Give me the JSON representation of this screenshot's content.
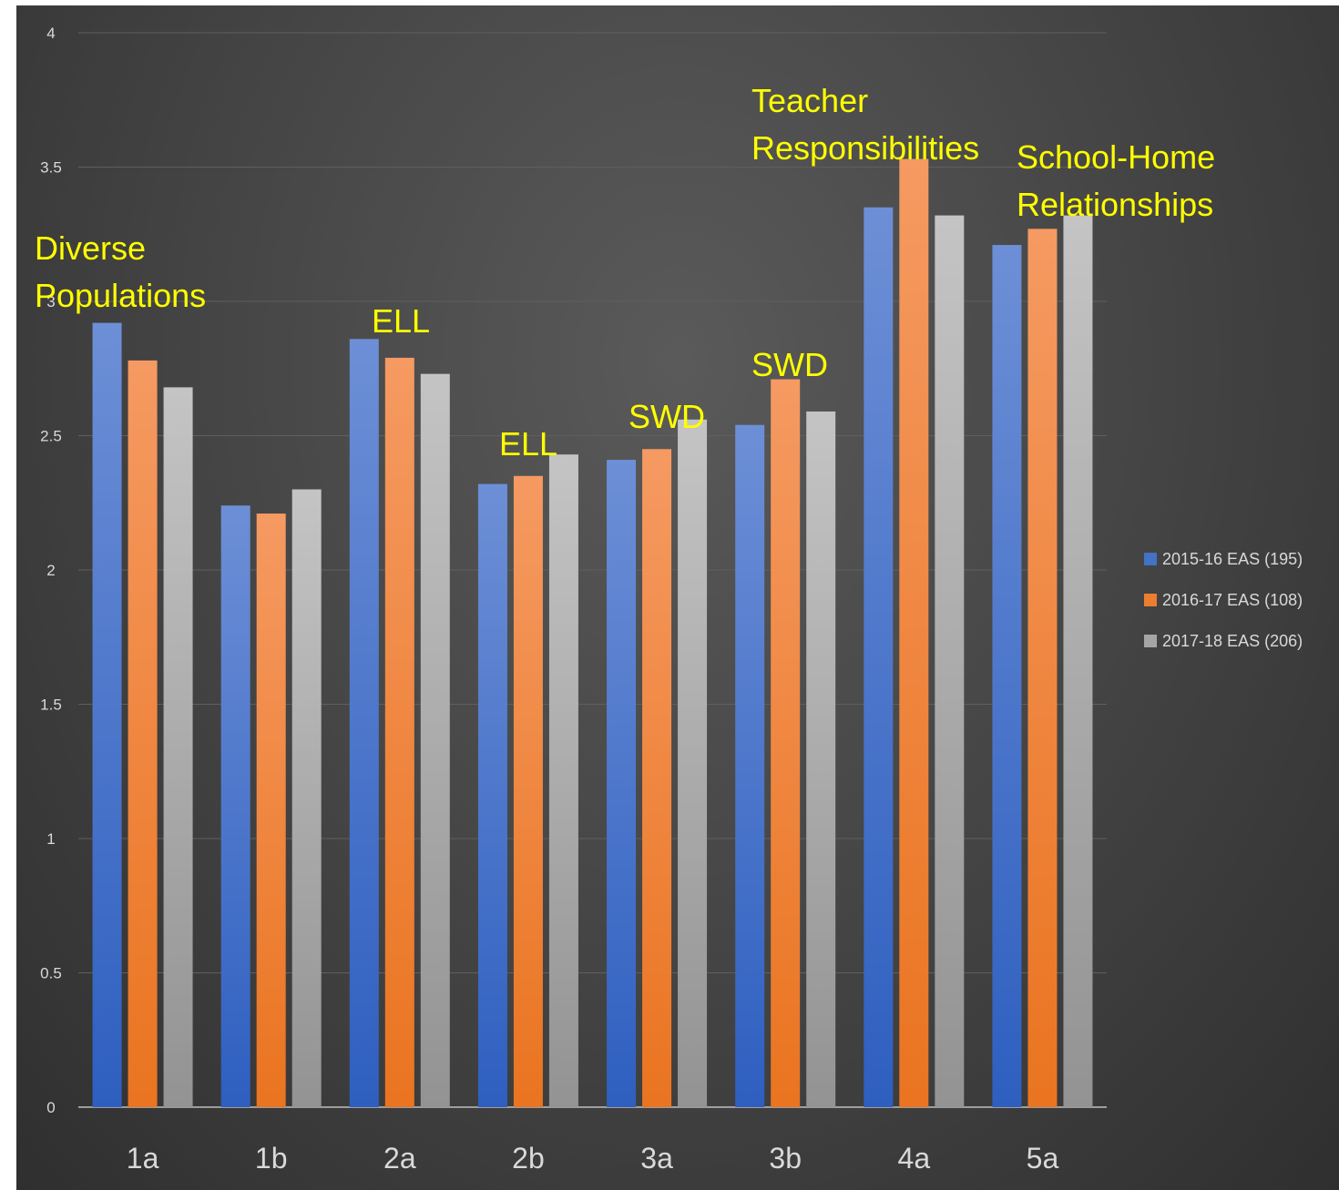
{
  "chart_data": {
    "type": "bar",
    "categories": [
      "1a",
      "1b",
      "2a",
      "2b",
      "3a",
      "3b",
      "4a",
      "5a"
    ],
    "series": [
      {
        "name": "2015-16 EAS (195)",
        "values": [
          2.92,
          2.24,
          2.86,
          2.32,
          2.41,
          2.54,
          3.35,
          3.21
        ],
        "color": "#4472c4"
      },
      {
        "name": "2016-17 EAS (108)",
        "values": [
          2.78,
          2.21,
          2.79,
          2.35,
          2.45,
          2.71,
          3.53,
          3.27
        ],
        "color": "#ed7d31"
      },
      {
        "name": "2017-18 EAS (206)",
        "values": [
          2.68,
          2.3,
          2.73,
          2.43,
          2.56,
          2.59,
          3.32,
          3.32
        ],
        "color": "#a5a5a5"
      }
    ],
    "ylim": [
      0,
      4
    ],
    "yticks": [
      "0",
      "0.5",
      "1",
      "1.5",
      "2",
      "2.5",
      "3",
      "3.5",
      "4"
    ],
    "grid": true,
    "legend_position": "right",
    "annotations": [
      {
        "lines": [
          "Diverse",
          "Populations"
        ],
        "category": "1a"
      },
      {
        "lines": [
          "ELL"
        ],
        "category": "2a"
      },
      {
        "lines": [
          "ELL"
        ],
        "category": "2b"
      },
      {
        "lines": [
          "SWD"
        ],
        "category": "3a"
      },
      {
        "lines": [
          "SWD"
        ],
        "category": "3b"
      },
      {
        "lines": [
          "Teacher",
          "Responsibilities"
        ],
        "category": "4a"
      },
      {
        "lines": [
          "School-Home",
          "Relationships"
        ],
        "category": "5a"
      }
    ]
  }
}
